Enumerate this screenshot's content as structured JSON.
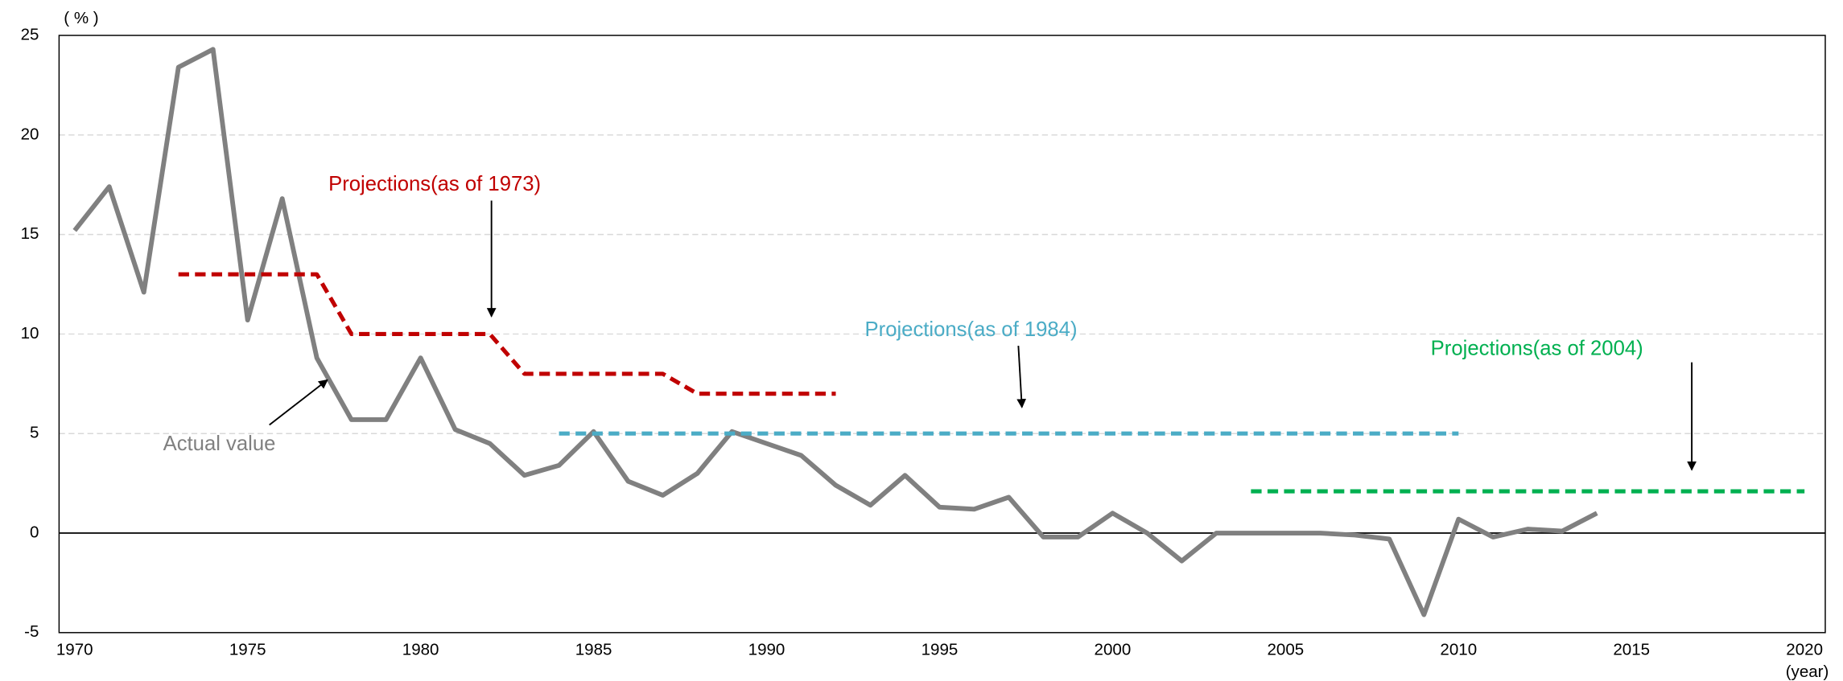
{
  "chart_data": {
    "type": "line",
    "y_unit": "( % )",
    "x_unit": "(year)",
    "xlim": [
      1969.55,
      2020.6
    ],
    "ylim": [
      -5,
      25
    ],
    "xticks": [
      1970,
      1975,
      1980,
      1985,
      1990,
      1995,
      2000,
      2005,
      2010,
      2015,
      2020
    ],
    "yticks": [
      -5,
      0,
      5,
      10,
      15,
      20,
      25
    ],
    "grid": true,
    "series": [
      {
        "name": "Actual value",
        "color": "#808080",
        "dashed": false,
        "x": [
          1970,
          1971,
          1972,
          1973,
          1974,
          1975,
          1976,
          1977,
          1978,
          1979,
          1980,
          1981,
          1982,
          1983,
          1984,
          1985,
          1986,
          1987,
          1988,
          1989,
          1990,
          1991,
          1992,
          1993,
          1994,
          1995,
          1996,
          1997,
          1998,
          1999,
          2000,
          2001,
          2002,
          2003,
          2004,
          2005,
          2006,
          2007,
          2008,
          2009,
          2010,
          2011,
          2012,
          2013,
          2014
        ],
        "values": [
          15.2,
          17.4,
          12.1,
          23.4,
          24.3,
          10.7,
          16.8,
          8.8,
          5.7,
          5.7,
          8.8,
          5.2,
          4.5,
          2.9,
          3.4,
          5.1,
          2.6,
          1.9,
          3.0,
          5.1,
          4.5,
          3.9,
          2.4,
          1.4,
          2.9,
          1.3,
          1.2,
          1.8,
          -0.2,
          -0.2,
          1.0,
          0.0,
          -1.4,
          0.0,
          0.0,
          0.0,
          0.0,
          -0.1,
          -0.3,
          -4.1,
          0.7,
          -0.2,
          0.2,
          0.1,
          1.0
        ]
      },
      {
        "name": "Projections(as of 1973)",
        "color": "#c00000",
        "dashed": true,
        "x": [
          1973,
          1974,
          1975,
          1976,
          1977,
          1978,
          1979,
          1980,
          1981,
          1982,
          1983,
          1984,
          1985,
          1986,
          1987,
          1988,
          1989,
          1990,
          1991,
          1992
        ],
        "values": [
          13,
          13,
          13,
          13,
          13,
          10,
          10,
          10,
          10,
          10,
          8,
          8,
          8,
          8,
          8,
          7,
          7,
          7,
          7,
          7
        ]
      },
      {
        "name": "Projections(as of 1984)",
        "color": "#4bacc6",
        "dashed": true,
        "x": [
          1984,
          2010
        ],
        "values": [
          5,
          5
        ]
      },
      {
        "name": "Projections(as of 2004)",
        "color": "#00b050",
        "dashed": true,
        "x": [
          2004,
          2020
        ],
        "values": [
          2.1,
          2.1
        ]
      }
    ]
  }
}
